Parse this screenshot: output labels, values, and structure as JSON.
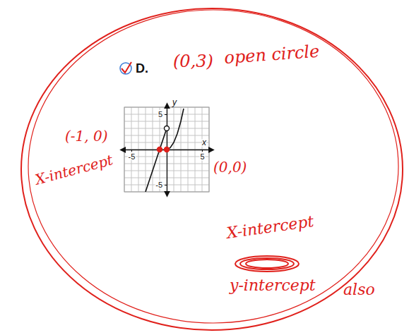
{
  "chart_data": {
    "type": "line",
    "title": "D.",
    "x_label": "x",
    "y_label": "y",
    "xlim": [
      -6,
      6
    ],
    "ylim": [
      -6,
      6
    ],
    "xticks": [
      -5,
      5
    ],
    "yticks": [
      -5,
      5
    ],
    "grid": true,
    "series": [
      {
        "type": "line",
        "color": "#111111",
        "x": [
          -3,
          -2,
          -1,
          0
        ],
        "values": [
          -6,
          -3,
          0,
          3
        ]
      },
      {
        "type": "line",
        "color": "#111111",
        "x": [
          0,
          0.5,
          1,
          1.5,
          2,
          2.4
        ],
        "values": [
          0,
          0.25,
          1,
          2.25,
          4,
          5.8
        ]
      },
      {
        "type": "scatter",
        "marker": "open",
        "color": "#111111",
        "x": [
          0
        ],
        "values": [
          3
        ]
      },
      {
        "type": "scatter",
        "marker": "filled",
        "color": "#e0201b",
        "x": [
          -1,
          0
        ],
        "values": [
          0,
          0
        ]
      }
    ],
    "annotations": [
      "(0,3)",
      "open circle",
      "(-1, 0)",
      "X-intercept",
      "(0,0)",
      "X-intercept",
      "y-intercept",
      "also"
    ]
  }
}
